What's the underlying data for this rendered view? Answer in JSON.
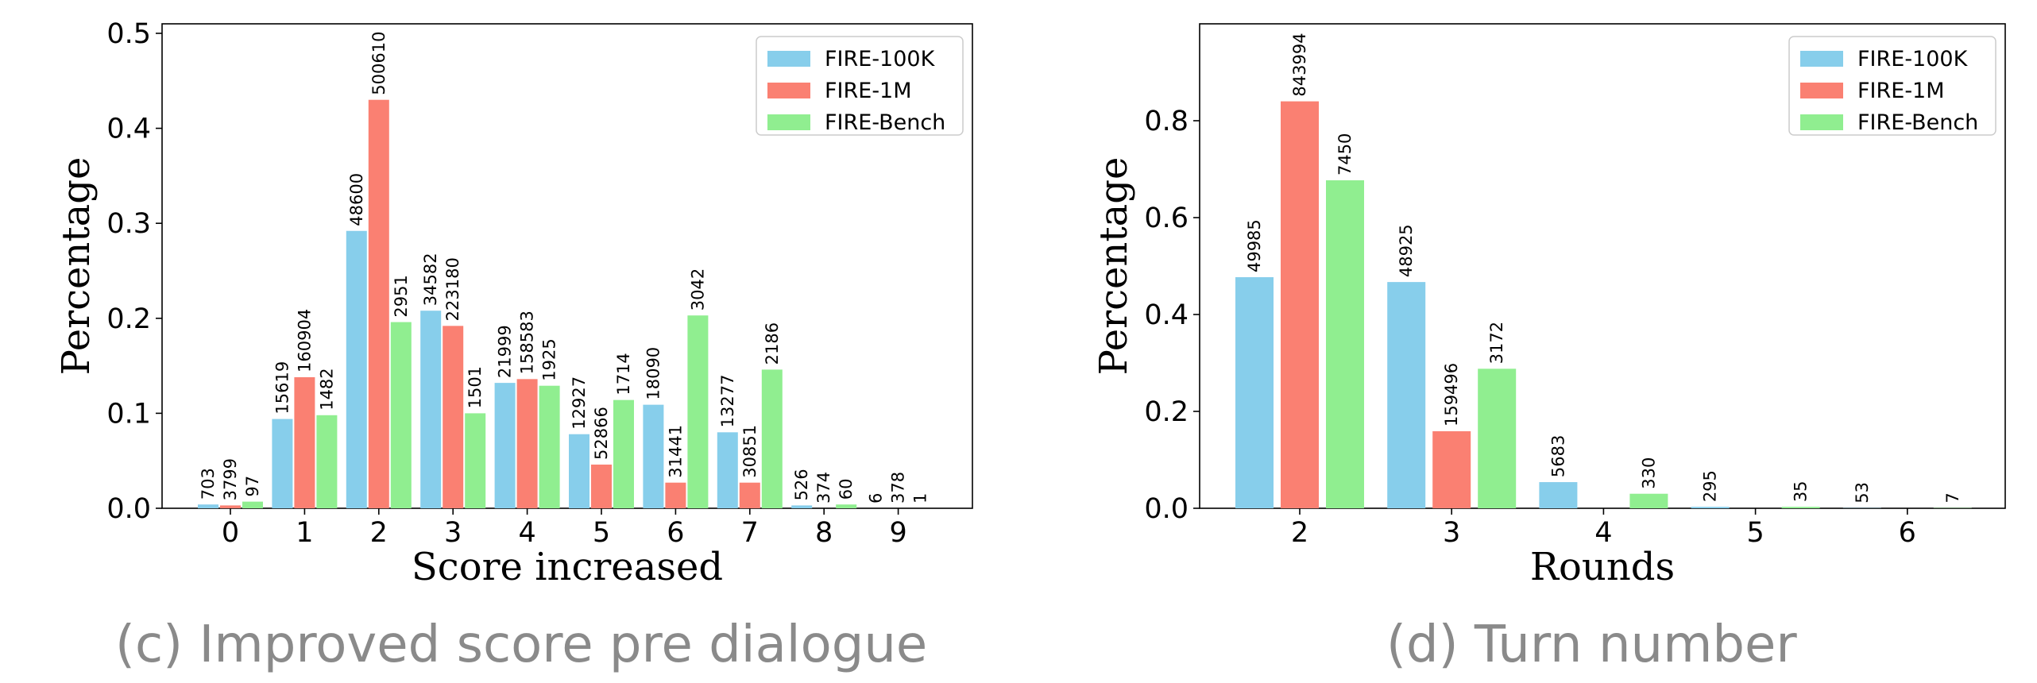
{
  "captions": {
    "left": "(c) Improved score pre dialogue",
    "right": "(d) Turn number"
  },
  "colors": {
    "FIRE-100K": "#87CEEB",
    "FIRE-1M": "#FA8072",
    "FIRE-Bench": "#90EE90"
  },
  "chart_data": [
    {
      "type": "bar",
      "title": "",
      "xlabel": "Score increased",
      "ylabel": "Percentage",
      "categories": [
        "0",
        "1",
        "2",
        "3",
        "4",
        "5",
        "6",
        "7",
        "8",
        "9"
      ],
      "ylim": [
        0,
        0.51
      ],
      "yticks": [
        "0.0",
        "0.1",
        "0.2",
        "0.3",
        "0.4",
        "0.5"
      ],
      "legend_position": "top-right",
      "series": [
        {
          "name": "FIRE-100K",
          "values": [
            0.004,
            0.094,
            0.292,
            0.208,
            0.132,
            0.078,
            0.109,
            0.08,
            0.003,
            0.0
          ],
          "labels": [
            "703",
            "15619",
            "48600",
            "34582",
            "21999",
            "12927",
            "18090",
            "13277",
            "526",
            "6"
          ]
        },
        {
          "name": "FIRE-1M",
          "values": [
            0.003,
            0.138,
            0.43,
            0.192,
            0.136,
            0.046,
            0.027,
            0.027,
            0.0,
            0.0
          ],
          "labels": [
            "3799",
            "160904",
            "500610",
            "223180",
            "158583",
            "52866",
            "31441",
            "30851",
            "374",
            "378"
          ]
        },
        {
          "name": "FIRE-Bench",
          "values": [
            0.007,
            0.098,
            0.196,
            0.1,
            0.129,
            0.114,
            0.203,
            0.146,
            0.004,
            0.0
          ],
          "labels": [
            "97",
            "1482",
            "2951",
            "1501",
            "1925",
            "1714",
            "3042",
            "2186",
            "60",
            "1"
          ]
        }
      ]
    },
    {
      "type": "bar",
      "title": "",
      "xlabel": "Rounds",
      "ylabel": "Percentage",
      "categories": [
        "2",
        "3",
        "4",
        "5",
        "6"
      ],
      "ylim": [
        0,
        1.0
      ],
      "yticks": [
        "0.0",
        "0.2",
        "0.4",
        "0.6",
        "0.8"
      ],
      "legend_position": "top-right",
      "series": [
        {
          "name": "FIRE-100K",
          "values": [
            0.477,
            0.467,
            0.054,
            0.003,
            0.0005
          ],
          "labels": [
            "49985",
            "48925",
            "5683",
            "295",
            "53"
          ]
        },
        {
          "name": "FIRE-1M",
          "values": [
            0.84,
            0.159,
            0.0,
            0.0,
            0.0
          ],
          "labels": [
            "843994",
            "159496",
            "",
            "",
            ""
          ]
        },
        {
          "name": "FIRE-Bench",
          "values": [
            0.677,
            0.288,
            0.03,
            0.003,
            0.0006
          ],
          "labels": [
            "7450",
            "3172",
            "330",
            "35",
            "7"
          ]
        }
      ]
    }
  ]
}
